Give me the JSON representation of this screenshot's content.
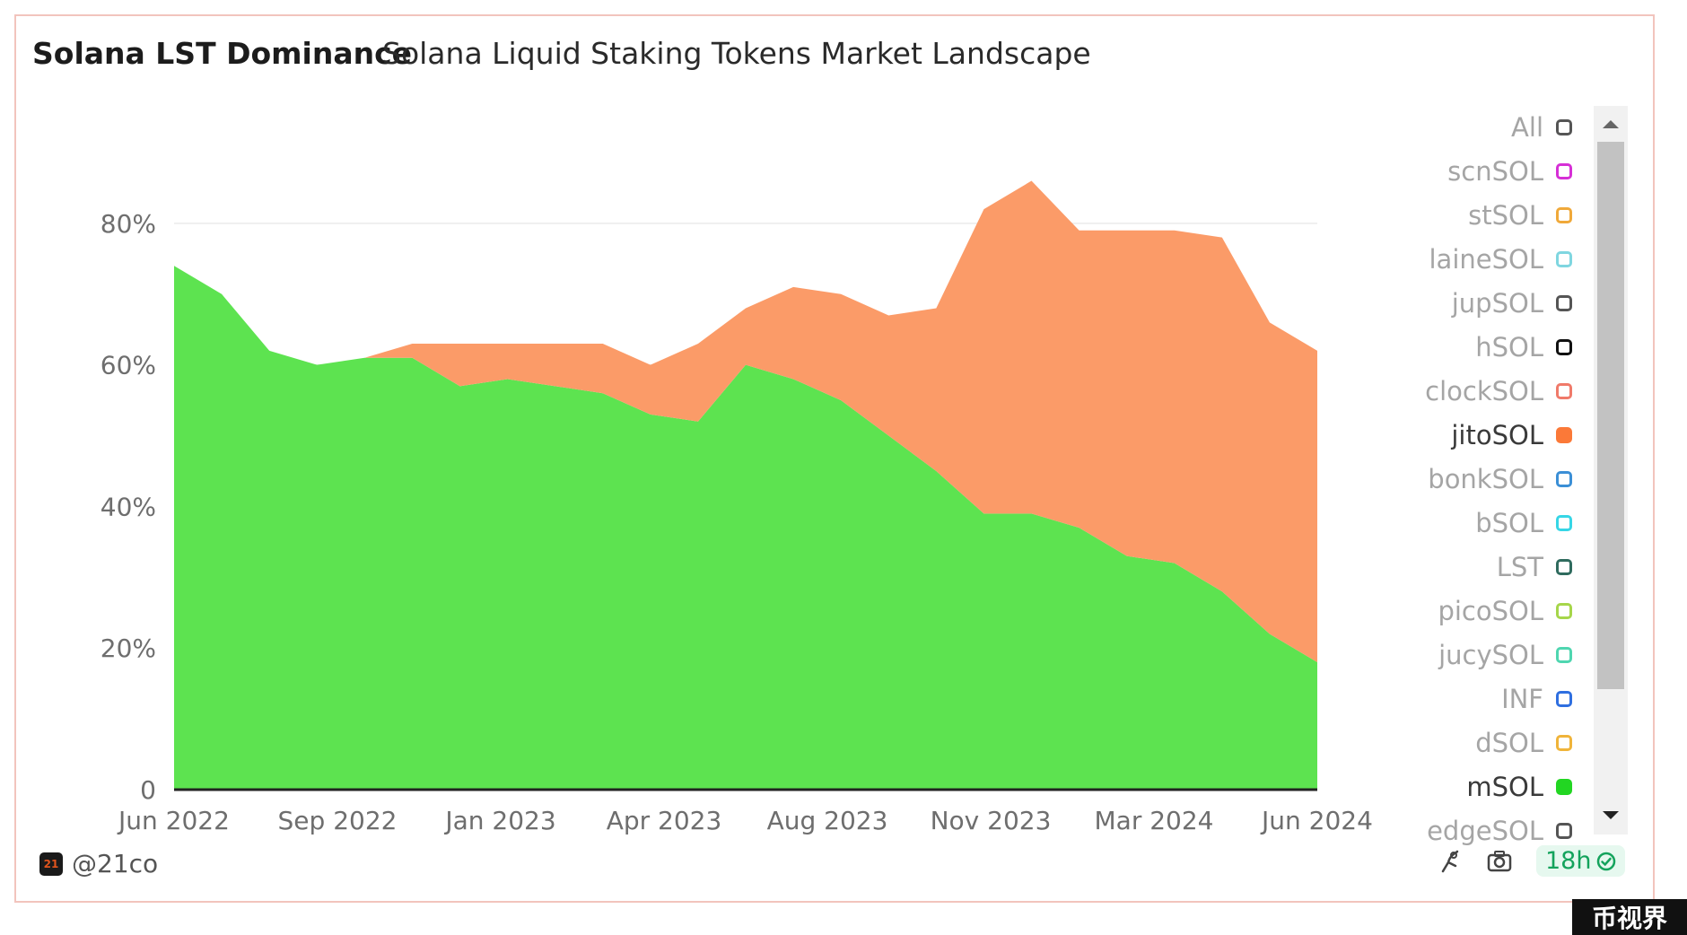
{
  "header": {
    "title": "Solana LST Dominance",
    "subtitle": "Solana Liquid Staking Tokens Market Landscape"
  },
  "legend": [
    {
      "label": "All",
      "color": "#555555",
      "filled": false,
      "active": false
    },
    {
      "label": "scnSOL",
      "color": "#d62fd6",
      "filled": false,
      "active": false
    },
    {
      "label": "stSOL",
      "color": "#f0a93a",
      "filled": false,
      "active": false
    },
    {
      "label": "laineSOL",
      "color": "#7fd6e0",
      "filled": false,
      "active": false
    },
    {
      "label": "jupSOL",
      "color": "#555555",
      "filled": false,
      "active": false
    },
    {
      "label": "hSOL",
      "color": "#111111",
      "filled": false,
      "active": false
    },
    {
      "label": "clockSOL",
      "color": "#f07a6a",
      "filled": false,
      "active": false
    },
    {
      "label": "jitoSOL",
      "color": "#fb7938",
      "filled": true,
      "active": true
    },
    {
      "label": "bonkSOL",
      "color": "#3b8fd6",
      "filled": false,
      "active": false
    },
    {
      "label": "bSOL",
      "color": "#36d6e6",
      "filled": false,
      "active": false
    },
    {
      "label": "LST",
      "color": "#2f6b5e",
      "filled": false,
      "active": false
    },
    {
      "label": "picoSOL",
      "color": "#a6d64a",
      "filled": false,
      "active": false
    },
    {
      "label": "jucySOL",
      "color": "#4fd6b0",
      "filled": false,
      "active": false
    },
    {
      "label": "INF",
      "color": "#2f6fe0",
      "filled": false,
      "active": false
    },
    {
      "label": "dSOL",
      "color": "#f0b43a",
      "filled": false,
      "active": false
    },
    {
      "label": "mSOL",
      "color": "#22d622",
      "filled": true,
      "active": true
    },
    {
      "label": "edgeSOL",
      "color": "#555555",
      "filled": false,
      "active": false
    }
  ],
  "footer": {
    "author": "@21co",
    "author_logo": "21",
    "freshness": "18h"
  },
  "watermark": "币视界",
  "chart_data": {
    "type": "area",
    "stacked": true,
    "title": "Solana LST Dominance",
    "ylim": [
      0,
      0.9
    ],
    "yticks": [
      0,
      0.2,
      0.4,
      0.6,
      0.8
    ],
    "ytick_labels": [
      "0",
      "20%",
      "40%",
      "60%",
      "80%"
    ],
    "xtick_labels": [
      "Jun 2022",
      "Sep 2022",
      "Jan 2023",
      "Apr 2023",
      "Aug 2023",
      "Nov 2023",
      "Mar 2024",
      "Jun 2024"
    ],
    "x": [
      "2022-06",
      "2022-07",
      "2022-08",
      "2022-09",
      "2022-10",
      "2022-11",
      "2022-12",
      "2023-01",
      "2023-02",
      "2023-03",
      "2023-04",
      "2023-05",
      "2023-06",
      "2023-07",
      "2023-08",
      "2023-09",
      "2023-10",
      "2023-11",
      "2023-12",
      "2024-01",
      "2024-02",
      "2024-03",
      "2024-04",
      "2024-05",
      "2024-06"
    ],
    "series": [
      {
        "name": "mSOL",
        "color": "#5de350",
        "values": [
          0.74,
          0.7,
          0.62,
          0.6,
          0.61,
          0.61,
          0.57,
          0.58,
          0.57,
          0.56,
          0.53,
          0.52,
          0.6,
          0.58,
          0.55,
          0.5,
          0.45,
          0.39,
          0.39,
          0.37,
          0.33,
          0.32,
          0.28,
          0.22,
          0.18
        ]
      },
      {
        "name": "jitoSOL",
        "color": "#fb9b68",
        "values": [
          0.0,
          0.0,
          0.0,
          0.0,
          0.0,
          0.02,
          0.06,
          0.05,
          0.06,
          0.07,
          0.07,
          0.11,
          0.08,
          0.13,
          0.15,
          0.17,
          0.23,
          0.43,
          0.47,
          0.42,
          0.46,
          0.47,
          0.5,
          0.44,
          0.44
        ]
      }
    ]
  }
}
